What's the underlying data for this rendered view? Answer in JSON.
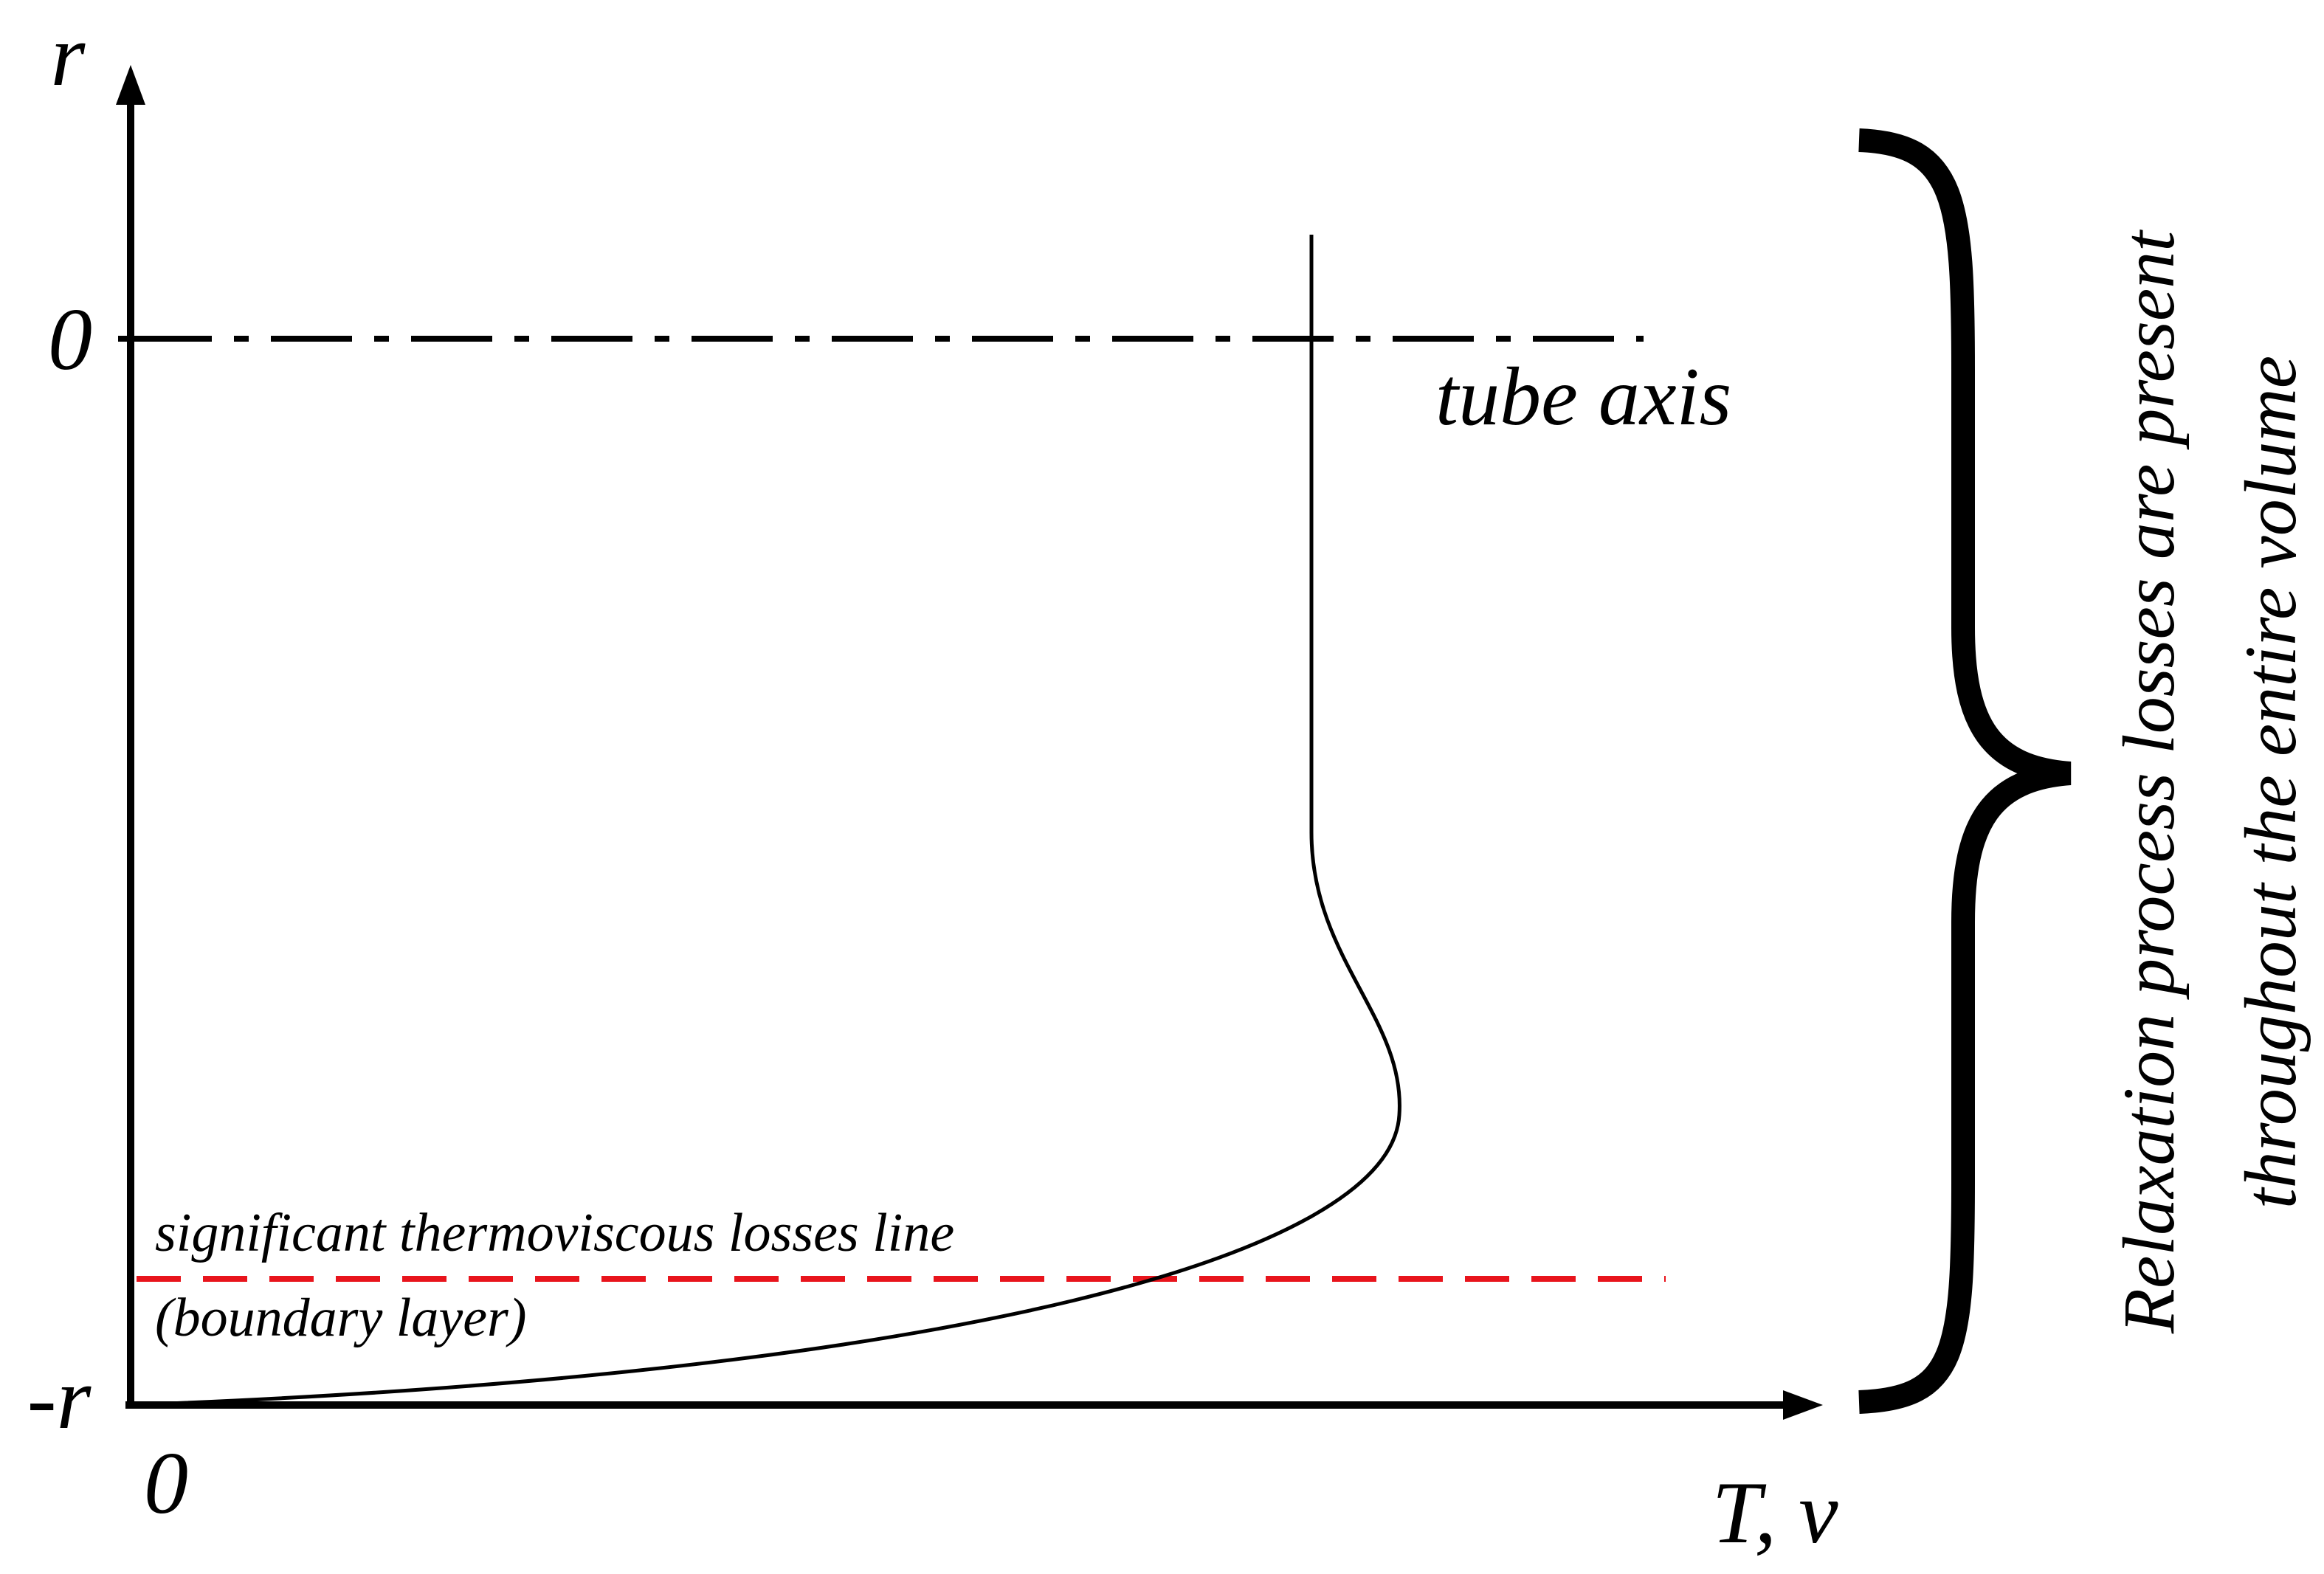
{
  "axes": {
    "y_label": "r",
    "y_top": "0",
    "y_bottom": "-r",
    "x_origin": "0",
    "x_label": "T, v"
  },
  "annotations": {
    "tube_axis": "tube axis",
    "losses_line": "significant thermoviscous losses line",
    "boundary_layer": "(boundary layer)"
  },
  "brace_note": {
    "line1": "Relaxation process losses are present",
    "line2": "throughout the entire volume"
  }
}
